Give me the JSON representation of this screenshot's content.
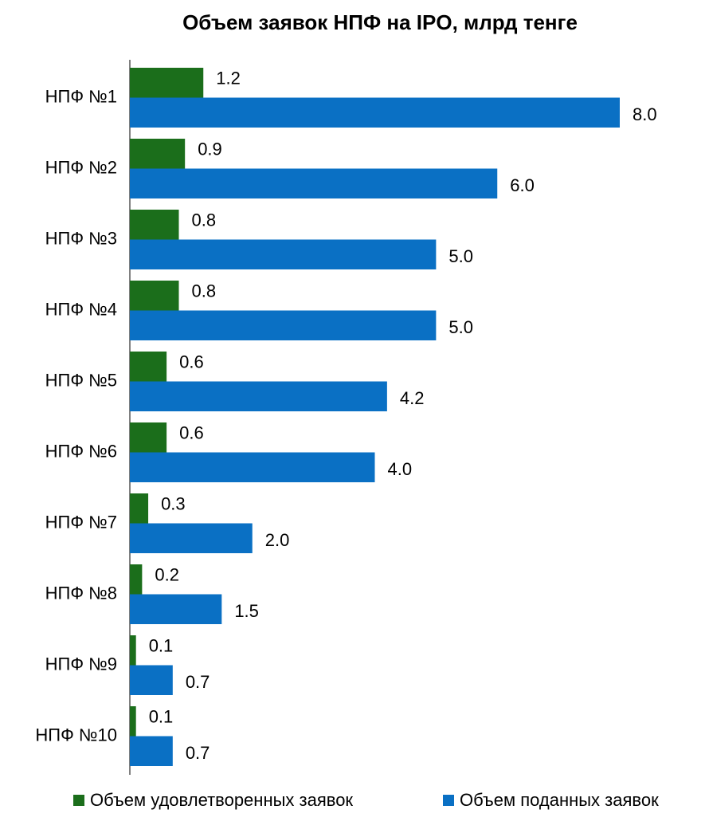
{
  "chart_data": {
    "type": "hbar",
    "title": "Объем заявок НПФ на IPO, млрд тенге",
    "categories": [
      "НПФ №1",
      "НПФ №2",
      "НПФ №3",
      "НПФ №4",
      "НПФ №5",
      "НПФ №6",
      "НПФ №7",
      "НПФ №8",
      "НПФ №9",
      "НПФ №10"
    ],
    "series": [
      {
        "name": "Объем удовлетворенных заявок",
        "color": "#1b6e1b",
        "values": [
          1.2,
          0.9,
          0.8,
          0.8,
          0.6,
          0.6,
          0.3,
          0.2,
          0.1,
          0.1
        ],
        "value_labels": [
          "1.2",
          "0.9",
          "0.8",
          "0.8",
          "0.6",
          "0.6",
          "0.3",
          "0.2",
          "0.1",
          "0.1"
        ]
      },
      {
        "name": "Объем поданных заявок",
        "color": "#0a70c4",
        "values": [
          8,
          6,
          5,
          5,
          4.2,
          4,
          2,
          1.5,
          0.7,
          0.7
        ],
        "value_labels": [
          "8.0",
          "6.0",
          "5.0",
          "5.0",
          "4.2",
          "4.0",
          "2.0",
          "1.5",
          "0.7",
          "0.7"
        ]
      }
    ],
    "xlim": [
      0,
      8
    ]
  }
}
